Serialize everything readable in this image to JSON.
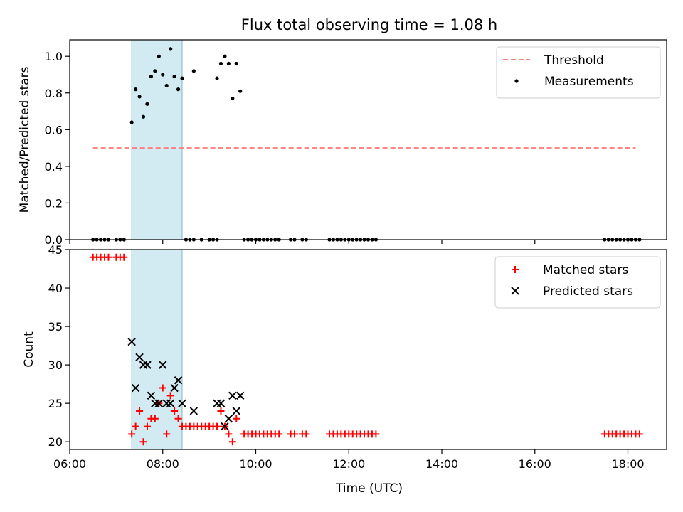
{
  "figure": {
    "title": "Flux total observing time = 1.08 h",
    "xlabel": "Time (UTC)"
  },
  "chart_data": [
    {
      "type": "scatter",
      "ylabel": "Matched/Predicted stars",
      "xlim": [
        "06:00",
        "18:50"
      ],
      "ylim": [
        0,
        1.09
      ],
      "yticks": [
        "0.0",
        "0.2",
        "0.4",
        "0.6",
        "0.8",
        "1.0"
      ],
      "grid": false,
      "legend_placement": "top-right",
      "shaded_span": [
        "07:20",
        "08:25"
      ],
      "threshold": {
        "name": "Threshold",
        "value": 0.5,
        "x_range": [
          "06:30",
          "18:10"
        ],
        "color": "#ff7f7f",
        "style": "dashed"
      },
      "series": [
        {
          "name": "Measurements",
          "marker": "dot",
          "color": "#000000",
          "points": [
            [
              "06:30",
              0
            ],
            [
              "06:35",
              0
            ],
            [
              "06:40",
              0
            ],
            [
              "06:45",
              0
            ],
            [
              "06:50",
              0
            ],
            [
              "07:00",
              0
            ],
            [
              "07:05",
              0
            ],
            [
              "07:10",
              0
            ],
            [
              "07:20",
              0.64
            ],
            [
              "07:25",
              0.82
            ],
            [
              "07:30",
              0.78
            ],
            [
              "07:35",
              0.67
            ],
            [
              "07:40",
              0.74
            ],
            [
              "07:45",
              0.89
            ],
            [
              "07:50",
              0.92
            ],
            [
              "07:55",
              1.0
            ],
            [
              "08:00",
              0.9
            ],
            [
              "08:05",
              0.84
            ],
            [
              "08:10",
              1.04
            ],
            [
              "08:15",
              0.89
            ],
            [
              "08:20",
              0.82
            ],
            [
              "08:25",
              0.88
            ],
            [
              "08:30",
              0
            ],
            [
              "08:35",
              0
            ],
            [
              "08:40",
              0
            ],
            [
              "08:50",
              0
            ],
            [
              "09:00",
              0
            ],
            [
              "09:05",
              0
            ],
            [
              "09:10",
              0
            ],
            [
              "08:40",
              0.92
            ],
            [
              "09:10",
              0.88
            ],
            [
              "09:15",
              0.96
            ],
            [
              "09:20",
              1.0
            ],
            [
              "09:25",
              0.96
            ],
            [
              "09:30",
              0.77
            ],
            [
              "09:35",
              0.96
            ],
            [
              "09:40",
              0.81
            ],
            [
              "09:45",
              0
            ],
            [
              "09:50",
              0
            ],
            [
              "09:55",
              0
            ],
            [
              "10:00",
              0
            ],
            [
              "10:05",
              0
            ],
            [
              "10:10",
              0
            ],
            [
              "10:15",
              0
            ],
            [
              "10:20",
              0
            ],
            [
              "10:25",
              0
            ],
            [
              "10:30",
              0
            ],
            [
              "10:45",
              0
            ],
            [
              "10:50",
              0
            ],
            [
              "11:00",
              0
            ],
            [
              "11:05",
              0
            ],
            [
              "11:35",
              0
            ],
            [
              "11:40",
              0
            ],
            [
              "11:45",
              0
            ],
            [
              "11:50",
              0
            ],
            [
              "11:55",
              0
            ],
            [
              "12:00",
              0
            ],
            [
              "12:05",
              0
            ],
            [
              "12:10",
              0
            ],
            [
              "12:15",
              0
            ],
            [
              "12:20",
              0
            ],
            [
              "12:25",
              0
            ],
            [
              "12:30",
              0
            ],
            [
              "12:35",
              0
            ],
            [
              "17:30",
              0
            ],
            [
              "17:35",
              0
            ],
            [
              "17:40",
              0
            ],
            [
              "17:45",
              0
            ],
            [
              "17:50",
              0
            ],
            [
              "17:55",
              0
            ],
            [
              "18:00",
              0
            ],
            [
              "18:05",
              0
            ],
            [
              "18:10",
              0
            ],
            [
              "18:15",
              0
            ]
          ]
        }
      ]
    },
    {
      "type": "scatter",
      "ylabel": "Count",
      "xlim": [
        "06:00",
        "18:50"
      ],
      "ylim": [
        19,
        45
      ],
      "yticks": [
        "20",
        "25",
        "30",
        "35",
        "40",
        "45"
      ],
      "xticks": [
        "06:00",
        "08:00",
        "10:00",
        "12:00",
        "14:00",
        "16:00",
        "18:00"
      ],
      "grid": false,
      "legend_placement": "top-right",
      "shaded_span": [
        "07:20",
        "08:25"
      ],
      "series": [
        {
          "name": "Matched stars",
          "marker": "plus",
          "color": "#ff0000",
          "points": [
            [
              "06:30",
              44
            ],
            [
              "06:35",
              44
            ],
            [
              "06:40",
              44
            ],
            [
              "06:45",
              44
            ],
            [
              "06:50",
              44
            ],
            [
              "07:00",
              44
            ],
            [
              "07:05",
              44
            ],
            [
              "07:10",
              44
            ],
            [
              "07:20",
              21
            ],
            [
              "07:25",
              22
            ],
            [
              "07:30",
              24
            ],
            [
              "07:35",
              20
            ],
            [
              "07:40",
              22
            ],
            [
              "07:45",
              23
            ],
            [
              "07:50",
              23
            ],
            [
              "07:55",
              25
            ],
            [
              "08:00",
              27
            ],
            [
              "08:05",
              21
            ],
            [
              "08:10",
              26
            ],
            [
              "08:15",
              24
            ],
            [
              "08:20",
              23
            ],
            [
              "08:25",
              22
            ],
            [
              "08:30",
              22
            ],
            [
              "08:35",
              22
            ],
            [
              "08:40",
              22
            ],
            [
              "08:45",
              22
            ],
            [
              "08:50",
              22
            ],
            [
              "08:55",
              22
            ],
            [
              "09:00",
              22
            ],
            [
              "09:05",
              22
            ],
            [
              "09:10",
              22
            ],
            [
              "09:15",
              24
            ],
            [
              "09:20",
              22
            ],
            [
              "09:25",
              21
            ],
            [
              "09:30",
              20
            ],
            [
              "09:35",
              23
            ],
            [
              "09:45",
              21
            ],
            [
              "09:50",
              21
            ],
            [
              "09:55",
              21
            ],
            [
              "10:00",
              21
            ],
            [
              "10:05",
              21
            ],
            [
              "10:10",
              21
            ],
            [
              "10:15",
              21
            ],
            [
              "10:20",
              21
            ],
            [
              "10:25",
              21
            ],
            [
              "10:30",
              21
            ],
            [
              "10:45",
              21
            ],
            [
              "10:50",
              21
            ],
            [
              "11:00",
              21
            ],
            [
              "11:05",
              21
            ],
            [
              "11:35",
              21
            ],
            [
              "11:40",
              21
            ],
            [
              "11:45",
              21
            ],
            [
              "11:50",
              21
            ],
            [
              "11:55",
              21
            ],
            [
              "12:00",
              21
            ],
            [
              "12:05",
              21
            ],
            [
              "12:10",
              21
            ],
            [
              "12:15",
              21
            ],
            [
              "12:20",
              21
            ],
            [
              "12:25",
              21
            ],
            [
              "12:30",
              21
            ],
            [
              "12:35",
              21
            ],
            [
              "17:30",
              21
            ],
            [
              "17:35",
              21
            ],
            [
              "17:40",
              21
            ],
            [
              "17:45",
              21
            ],
            [
              "17:50",
              21
            ],
            [
              "17:55",
              21
            ],
            [
              "18:00",
              21
            ],
            [
              "18:05",
              21
            ],
            [
              "18:10",
              21
            ],
            [
              "18:15",
              21
            ]
          ]
        },
        {
          "name": "Predicted stars",
          "marker": "cross",
          "color": "#000000",
          "points": [
            [
              "07:20",
              33
            ],
            [
              "07:25",
              27
            ],
            [
              "07:30",
              31
            ],
            [
              "07:35",
              30
            ],
            [
              "07:40",
              30
            ],
            [
              "07:45",
              26
            ],
            [
              "07:50",
              25
            ],
            [
              "07:55",
              25
            ],
            [
              "08:00",
              30
            ],
            [
              "08:05",
              25
            ],
            [
              "08:10",
              25
            ],
            [
              "08:15",
              27
            ],
            [
              "08:20",
              28
            ],
            [
              "08:25",
              25
            ],
            [
              "08:40",
              24
            ],
            [
              "09:10",
              25
            ],
            [
              "09:15",
              25
            ],
            [
              "09:20",
              22
            ],
            [
              "09:25",
              23
            ],
            [
              "09:30",
              26
            ],
            [
              "09:35",
              24
            ],
            [
              "09:40",
              26
            ]
          ]
        }
      ]
    }
  ]
}
